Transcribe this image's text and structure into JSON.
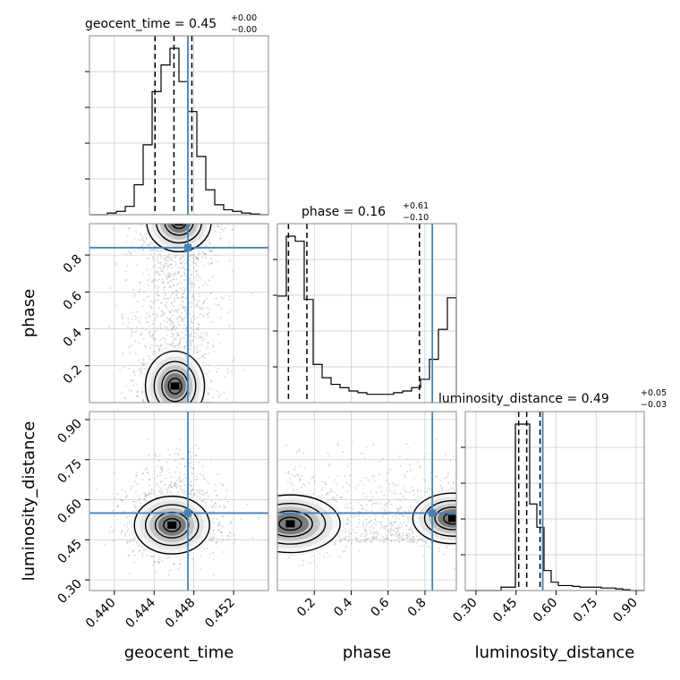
{
  "chart_data": {
    "type": "corner",
    "parameters": [
      {
        "name": "geocent_time",
        "xlabel": "geocent_time",
        "title": "geocent_time = 0.45",
        "title_value": "0.45",
        "title_plus": "+0.00",
        "title_minus": "−0.00",
        "range": [
          0.4375,
          0.4555
        ],
        "ticks": [
          0.44,
          0.444,
          0.448,
          0.452
        ],
        "tick_labels": [
          "0.440",
          "0.444",
          "0.448",
          "0.452"
        ],
        "quantiles": [
          0.4441,
          0.446,
          0.4478
        ],
        "truth": 0.4474,
        "hist": [
          0,
          0,
          0.01,
          0.02,
          0.05,
          0.18,
          0.42,
          0.74,
          0.9,
          1.0,
          0.8,
          0.62,
          0.35,
          0.15,
          0.06,
          0.03,
          0.02,
          0.01,
          0.005,
          0
        ]
      },
      {
        "name": "phase",
        "xlabel": "phase",
        "ylabel": "phase",
        "title": "phase = 0.16",
        "title_value": "0.16",
        "title_plus": "+0.61",
        "title_minus": "−0.10",
        "range": [
          0.0,
          0.97
        ],
        "ticks": [
          0.2,
          0.4,
          0.6,
          0.8
        ],
        "tick_labels": [
          "0.2",
          "0.4",
          "0.6",
          "0.8"
        ],
        "quantiles": [
          0.06,
          0.16,
          0.77
        ],
        "truth": 0.84,
        "hist": [
          0.64,
          1.0,
          0.97,
          0.62,
          0.23,
          0.15,
          0.11,
          0.09,
          0.07,
          0.06,
          0.05,
          0.05,
          0.05,
          0.06,
          0.07,
          0.09,
          0.14,
          0.26,
          0.44,
          0.63
        ]
      },
      {
        "name": "luminosity_distance",
        "xlabel": "luminosity_distance",
        "ylabel": "luminosity_distance",
        "title": "luminosity_distance = 0.49",
        "title_value": "0.49",
        "title_plus": "+0.05",
        "title_minus": "−0.03",
        "range": [
          0.26,
          0.93
        ],
        "ticks": [
          0.3,
          0.45,
          0.6,
          0.75,
          0.9
        ],
        "tick_labels": [
          "0.30",
          "0.45",
          "0.60",
          "0.75",
          "0.90"
        ],
        "quantiles": [
          0.46,
          0.49,
          0.54
        ],
        "truth": 0.55,
        "hist": [
          0,
          0,
          0,
          0,
          0,
          0.02,
          0.02,
          1.0,
          1.0,
          0.52,
          0.38,
          0.12,
          0.05,
          0.03,
          0.03,
          0.025,
          0.02,
          0.02,
          0.02,
          0.015,
          0.015,
          0.01,
          0.005,
          0,
          0
        ]
      }
    ],
    "contour_blobs": {
      "phase_vs_geocent_time": [
        {
          "x": 0.4461,
          "y": 0.09,
          "sx": 0.0011,
          "sy": 0.07
        },
        {
          "x": 0.4465,
          "y": 0.98,
          "sx": 0.0012,
          "sy": 0.06
        }
      ],
      "luminosity_distance_vs_geocent_time": [
        {
          "x": 0.4458,
          "y": 0.505,
          "sx": 0.0014,
          "sy": 0.04
        }
      ],
      "luminosity_distance_vs_phase": [
        {
          "x": 0.07,
          "y": 0.51,
          "sx": 0.1,
          "sy": 0.04
        },
        {
          "x": 0.95,
          "y": 0.53,
          "sx": 0.08,
          "sy": 0.035
        }
      ]
    },
    "truth_color": "#4682b4",
    "line_color": "#000000",
    "grid": true
  }
}
